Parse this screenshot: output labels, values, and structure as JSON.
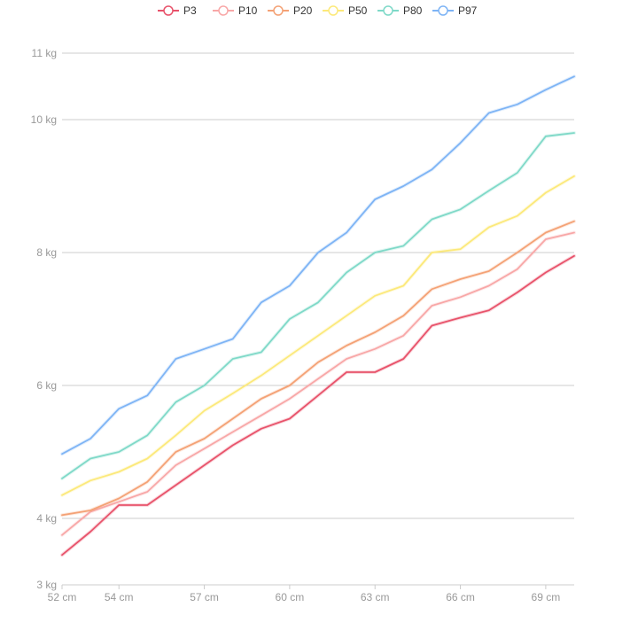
{
  "chart_data": {
    "type": "line",
    "title": "",
    "xlabel": "",
    "ylabel": "",
    "x_unit": "cm",
    "y_unit": "kg",
    "x": [
      52,
      53,
      54,
      55,
      56,
      57,
      58,
      59,
      60,
      61,
      62,
      63,
      64,
      65,
      66,
      67,
      68,
      69,
      70
    ],
    "x_ticks": [
      52,
      54,
      57,
      60,
      63,
      66,
      69
    ],
    "x_tick_labels": [
      "52 cm",
      "54 cm",
      "57 cm",
      "60 cm",
      "63 cm",
      "66 cm",
      "69 cm"
    ],
    "xlim": [
      52,
      70
    ],
    "y_ticks": [
      3,
      4,
      6,
      8,
      10,
      11
    ],
    "y_tick_labels": [
      "3 kg",
      "4 kg",
      "6 kg",
      "8 kg",
      "10 kg",
      "11 kg"
    ],
    "ylim": [
      3,
      11
    ],
    "grid": "horizontal",
    "legend_position": "top-center",
    "series": [
      {
        "name": "P3",
        "color": "#e8536b",
        "values": [
          3.45,
          3.8,
          4.2,
          4.2,
          4.5,
          4.8,
          5.1,
          5.35,
          5.5,
          5.85,
          6.2,
          6.2,
          6.4,
          6.9,
          7.02,
          7.13,
          7.4,
          7.7,
          7.95
        ]
      },
      {
        "name": "P10",
        "color": "#f8a7a7",
        "values": [
          3.75,
          4.1,
          4.25,
          4.4,
          4.8,
          5.05,
          5.3,
          5.55,
          5.8,
          6.1,
          6.4,
          6.55,
          6.75,
          7.2,
          7.33,
          7.5,
          7.75,
          8.2,
          8.3
        ]
      },
      {
        "name": "P20",
        "color": "#f4a276",
        "values": [
          4.05,
          4.12,
          4.3,
          4.55,
          5.0,
          5.2,
          5.5,
          5.8,
          6.0,
          6.35,
          6.6,
          6.8,
          7.05,
          7.45,
          7.6,
          7.72,
          8.0,
          8.3,
          8.47
        ]
      },
      {
        "name": "P50",
        "color": "#fce97a",
        "values": [
          4.35,
          4.57,
          4.7,
          4.9,
          5.25,
          5.62,
          5.88,
          6.15,
          6.45,
          6.75,
          7.05,
          7.35,
          7.5,
          8.0,
          8.05,
          8.38,
          8.55,
          8.9,
          9.15
        ]
      },
      {
        "name": "P80",
        "color": "#7fd9c8",
        "values": [
          4.6,
          4.9,
          5.0,
          5.25,
          5.75,
          6.0,
          6.4,
          6.5,
          7.0,
          7.25,
          7.7,
          8.0,
          8.1,
          8.5,
          8.65,
          8.93,
          9.2,
          9.75,
          9.8
        ]
      },
      {
        "name": "P97",
        "color": "#7eb4f5",
        "values": [
          4.97,
          5.2,
          5.65,
          5.85,
          6.4,
          6.55,
          6.7,
          7.25,
          7.5,
          8.0,
          8.3,
          8.8,
          9.0,
          9.25,
          9.65,
          10.1,
          10.23,
          10.45,
          10.65
        ]
      }
    ]
  }
}
